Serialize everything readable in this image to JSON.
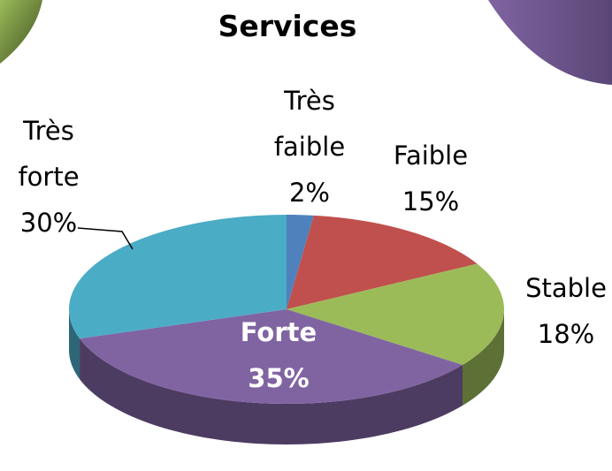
{
  "chart_data": {
    "type": "pie3d",
    "title": "Services",
    "categories": [
      "Très faible",
      "Faible",
      "Stable",
      "Forte",
      "Très forte"
    ],
    "values": [
      2,
      15,
      18,
      35,
      30
    ],
    "value_labels": [
      "2%",
      "15%",
      "18%",
      "35%",
      "30%"
    ],
    "colors": [
      "#4f81bd",
      "#c0504d",
      "#9bbb59",
      "#8064a2",
      "#4bacc6"
    ]
  }
}
